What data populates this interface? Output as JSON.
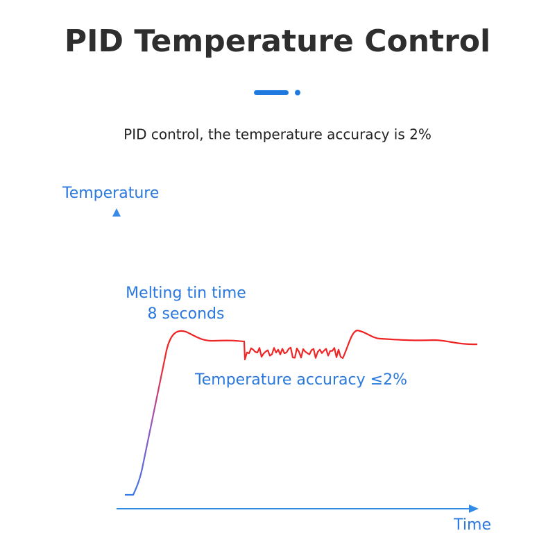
{
  "header": {
    "title": "PID Temperature Control",
    "subtitle": "PID control, the temperature accuracy is 2%"
  },
  "diagram": {
    "y_axis_label": "Temperature",
    "x_axis_label": "Time",
    "annotations": [
      "Melting tin time",
      "8 seconds",
      "Temperature accuracy ≤2%"
    ]
  }
}
